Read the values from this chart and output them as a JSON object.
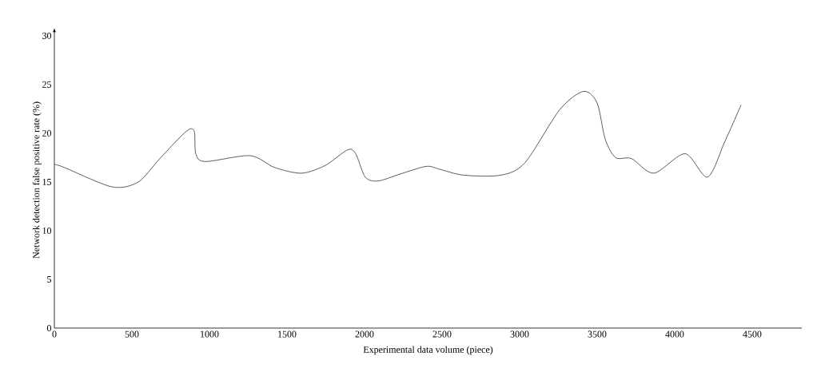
{
  "chart_data": {
    "type": "line",
    "xlabel": "Experimental data volume (piece)",
    "ylabel": "Network detection false positive rate (%)",
    "xlim": [
      0,
      4820
    ],
    "ylim": [
      0,
      30.4
    ],
    "xticks": [
      0,
      500,
      1000,
      1500,
      2000,
      2500,
      3000,
      3500,
      4000,
      4500
    ],
    "yticks": [
      0,
      5,
      10,
      15,
      20,
      25,
      30
    ],
    "line_style": "solid",
    "series": [
      {
        "color": "#333333",
        "x": [
          0,
          62,
          371,
          541,
          680,
          851,
          902,
          912,
          974,
          1263,
          1418,
          1593,
          1747,
          1891,
          1943,
          2005,
          2088,
          2227,
          2397,
          2485,
          2639,
          2881,
          3036,
          3258,
          3412,
          3500,
          3552,
          3619,
          3722,
          3866,
          4067,
          4212,
          4325,
          4428
        ],
        "values": [
          16.8,
          16.5,
          14.5,
          15.0,
          17.4,
          20.2,
          20.2,
          17.9,
          17.1,
          17.7,
          16.5,
          15.9,
          16.7,
          18.3,
          17.9,
          15.5,
          15.1,
          15.8,
          16.6,
          16.3,
          15.7,
          15.7,
          17.0,
          22.4,
          24.3,
          23.1,
          19.4,
          17.5,
          17.4,
          15.9,
          17.9,
          15.5,
          19.2,
          22.9
        ]
      }
    ]
  }
}
